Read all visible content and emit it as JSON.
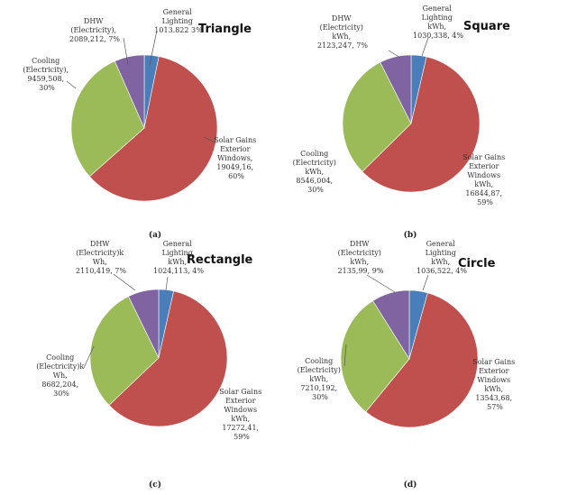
{
  "colors": {
    "general_lighting": "#4a7ebb",
    "solar_gains": "#c0504d",
    "cooling": "#9bbb59",
    "dhw": "#8064a2"
  },
  "chart_data": [
    {
      "type": "pie",
      "title": "Triangle",
      "caption": "(a)",
      "start_angle_deg": 0,
      "slices": [
        {
          "key": "general_lighting",
          "name": "General Lighting",
          "value": 1013822,
          "percent": 3,
          "label_lines": [
            "General",
            "Lighting",
            "1013.822 3%"
          ]
        },
        {
          "key": "solar_gains",
          "name": "Solar Gains Exterior Windows",
          "value": 19049160,
          "percent": 60,
          "label_lines": [
            "Solar Gains",
            "Exterior",
            "Windows,",
            "19049,16,",
            "60%"
          ]
        },
        {
          "key": "cooling",
          "name": "Cooling (Electricity)",
          "value": 9459508,
          "percent": 30,
          "label_lines": [
            "Cooling",
            "(Electricity),",
            "9459,508,",
            "30%"
          ]
        },
        {
          "key": "dhw",
          "name": "DHW (Electricity)",
          "value": 2089212,
          "percent": 7,
          "label_lines": [
            "DHW",
            "(Electricity),",
            "2089,212, 7%"
          ]
        }
      ]
    },
    {
      "type": "pie",
      "title": "Square",
      "caption": "(b)",
      "start_angle_deg": 0,
      "slices": [
        {
          "key": "general_lighting",
          "name": "General Lighting",
          "value": 1030338,
          "percent": 4,
          "label_lines": [
            "General",
            "Lighting",
            "kWh,",
            "1030,338, 4%"
          ]
        },
        {
          "key": "solar_gains",
          "name": "Solar Gains Exterior Windows",
          "value": 16844870,
          "percent": 59,
          "label_lines": [
            "Solar Gains",
            "Exterior",
            "Windows",
            "kWh,",
            "16844,87,",
            "59%"
          ]
        },
        {
          "key": "cooling",
          "name": "Cooling (Electricity)",
          "value": 8546004,
          "percent": 30,
          "label_lines": [
            "Cooling",
            "(Electricity)",
            "kWh,",
            "8546,004,",
            "30%"
          ]
        },
        {
          "key": "dhw",
          "name": "DHW (Electricity)",
          "value": 2123247,
          "percent": 7,
          "label_lines": [
            "DHW",
            "(Electricity)",
            "kWh,",
            "2123,247, 7%"
          ]
        }
      ]
    },
    {
      "type": "pie",
      "title": "Rectangle",
      "caption": "(c)",
      "start_angle_deg": 0,
      "slices": [
        {
          "key": "general_lighting",
          "name": "General Lighting",
          "value": 1024113,
          "percent": 4,
          "label_lines": [
            "General",
            "Lighting",
            "kWh,",
            "1024,113, 4%"
          ]
        },
        {
          "key": "solar_gains",
          "name": "Solar Gains Exterior Windows",
          "value": 17272410,
          "percent": 59,
          "label_lines": [
            "Solar Gains",
            "Exterior",
            "Windows",
            "kWh,",
            "17272,41,",
            "59%"
          ]
        },
        {
          "key": "cooling",
          "name": "Cooling (Electricity)",
          "value": 8682204,
          "percent": 30,
          "label_lines": [
            "Cooling",
            "(Electricity)k",
            "Wh,",
            "8682,204,",
            "30%"
          ]
        },
        {
          "key": "dhw",
          "name": "DHW (Electricity)",
          "value": 2110419,
          "percent": 7,
          "label_lines": [
            "DHW",
            "(Electricity)k",
            "Wh,",
            "2110,419, 7%"
          ]
        }
      ]
    },
    {
      "type": "pie",
      "title": "Circle",
      "caption": "(d)",
      "start_angle_deg": 0,
      "slices": [
        {
          "key": "general_lighting",
          "name": "General Lighting",
          "value": 1036522,
          "percent": 4,
          "label_lines": [
            "General",
            "Lighting",
            "kWh,",
            "1036,522, 4%"
          ]
        },
        {
          "key": "solar_gains",
          "name": "Solar Gains Exterior Windows",
          "value": 13543680,
          "percent": 57,
          "label_lines": [
            "Solar Gains",
            "Exterior",
            "Windows",
            "kWh,",
            "13543,68,",
            "57%"
          ]
        },
        {
          "key": "cooling",
          "name": "Cooling (Electricity)",
          "value": 7210192,
          "percent": 30,
          "label_lines": [
            "Cooling",
            "(Electricity)",
            "kWh,",
            "7210,192,",
            "30%"
          ]
        },
        {
          "key": "dhw",
          "name": "DHW (Electricity)",
          "value": 2135990,
          "percent": 9,
          "label_lines": [
            "DHW",
            "(Electricity)",
            "kWh,",
            "2135,99, 9%"
          ]
        }
      ]
    }
  ]
}
